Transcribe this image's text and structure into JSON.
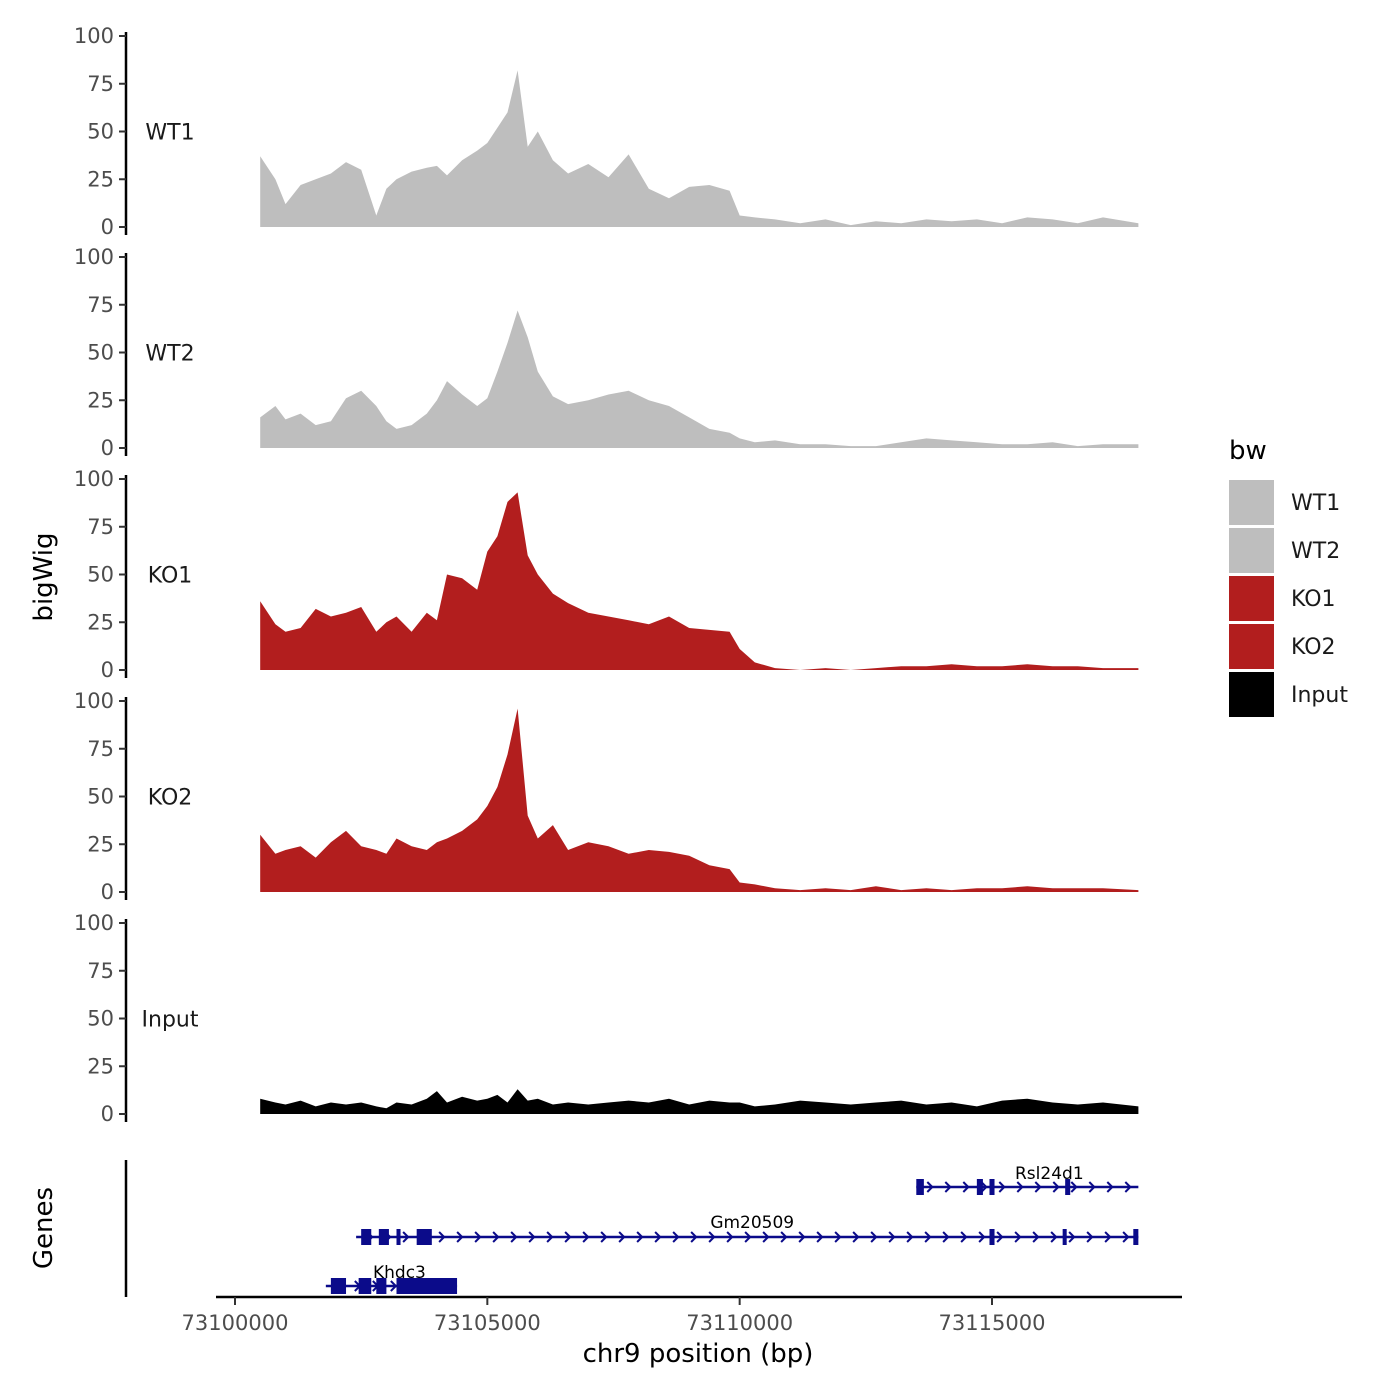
{
  "chart_data": {
    "type": "area",
    "y_axis_title": "bigWig",
    "x_axis_title": "chr9 position (bp)",
    "x_range": [
      73100000,
      73118000
    ],
    "x_ticks": [
      73100000,
      73105000,
      73110000,
      73115000
    ],
    "x_tick_labels": [
      "73100000",
      "73105000",
      "73110000",
      "73115000"
    ],
    "y_range": [
      0,
      100
    ],
    "y_ticks": [
      0,
      25,
      50,
      75,
      100
    ],
    "y_tick_labels": [
      "0",
      "25",
      "50",
      "75",
      "100"
    ],
    "legend": {
      "title": "bw",
      "position": "right",
      "items": [
        {
          "label": "WT1",
          "color": "#bebebe"
        },
        {
          "label": "WT2",
          "color": "#bebebe"
        },
        {
          "label": "KO1",
          "color": "#b21e1e"
        },
        {
          "label": "KO2",
          "color": "#b21e1e"
        },
        {
          "label": "Input",
          "color": "#000000"
        }
      ]
    },
    "series": [
      {
        "name": "WT1",
        "color": "#bebebe",
        "x": [
          73100500,
          73100800,
          73101000,
          73101300,
          73101600,
          73101900,
          73102200,
          73102500,
          73102800,
          73103000,
          73103200,
          73103500,
          73103800,
          73104000,
          73104200,
          73104500,
          73104800,
          73105000,
          73105200,
          73105400,
          73105600,
          73105800,
          73106000,
          73106300,
          73106600,
          73107000,
          73107400,
          73107800,
          73108200,
          73108600,
          73109000,
          73109400,
          73109800,
          73110000,
          73110300,
          73110700,
          73111200,
          73111700,
          73112200,
          73112700,
          73113200,
          73113700,
          73114200,
          73114700,
          73115200,
          73115700,
          73116200,
          73116700,
          73117200,
          73117900
        ],
        "values": [
          37,
          25,
          12,
          22,
          25,
          28,
          34,
          30,
          6,
          20,
          25,
          29,
          31,
          32,
          27,
          35,
          40,
          44,
          52,
          60,
          82,
          42,
          50,
          35,
          28,
          33,
          26,
          38,
          20,
          15,
          21,
          22,
          19,
          6,
          5,
          4,
          2,
          4,
          1,
          3,
          2,
          4,
          3,
          4,
          2,
          5,
          4,
          2,
          5,
          2
        ]
      },
      {
        "name": "WT2",
        "color": "#bebebe",
        "x": [
          73100500,
          73100800,
          73101000,
          73101300,
          73101600,
          73101900,
          73102200,
          73102500,
          73102800,
          73103000,
          73103200,
          73103500,
          73103800,
          73104000,
          73104200,
          73104500,
          73104800,
          73105000,
          73105200,
          73105400,
          73105600,
          73105800,
          73106000,
          73106300,
          73106600,
          73107000,
          73107400,
          73107800,
          73108200,
          73108600,
          73109000,
          73109400,
          73109800,
          73110000,
          73110300,
          73110700,
          73111200,
          73111700,
          73112200,
          73112700,
          73113200,
          73113700,
          73114200,
          73114700,
          73115200,
          73115700,
          73116200,
          73116700,
          73117200,
          73117900
        ],
        "values": [
          16,
          22,
          15,
          18,
          12,
          14,
          26,
          30,
          22,
          14,
          10,
          12,
          18,
          25,
          35,
          28,
          22,
          26,
          40,
          55,
          72,
          58,
          40,
          27,
          23,
          25,
          28,
          30,
          25,
          22,
          16,
          10,
          8,
          5,
          3,
          4,
          2,
          2,
          1,
          1,
          3,
          5,
          4,
          3,
          2,
          2,
          3,
          1,
          2,
          2
        ]
      },
      {
        "name": "KO1",
        "color": "#b21e1e",
        "x": [
          73100500,
          73100800,
          73101000,
          73101300,
          73101600,
          73101900,
          73102200,
          73102500,
          73102800,
          73103000,
          73103200,
          73103500,
          73103800,
          73104000,
          73104200,
          73104500,
          73104800,
          73105000,
          73105200,
          73105400,
          73105600,
          73105800,
          73106000,
          73106300,
          73106600,
          73107000,
          73107400,
          73107800,
          73108200,
          73108600,
          73109000,
          73109400,
          73109800,
          73110000,
          73110300,
          73110700,
          73111200,
          73111700,
          73112200,
          73112700,
          73113200,
          73113700,
          73114200,
          73114700,
          73115200,
          73115700,
          73116200,
          73116700,
          73117200,
          73117900
        ],
        "values": [
          36,
          24,
          20,
          22,
          32,
          28,
          30,
          33,
          20,
          25,
          28,
          20,
          30,
          26,
          50,
          48,
          42,
          62,
          70,
          88,
          93,
          60,
          50,
          40,
          35,
          30,
          28,
          26,
          24,
          28,
          22,
          21,
          20,
          11,
          4,
          1,
          0,
          1,
          0,
          1,
          2,
          2,
          3,
          2,
          2,
          3,
          2,
          2,
          1,
          1
        ]
      },
      {
        "name": "KO2",
        "color": "#b21e1e",
        "x": [
          73100500,
          73100800,
          73101000,
          73101300,
          73101600,
          73101900,
          73102200,
          73102500,
          73102800,
          73103000,
          73103200,
          73103500,
          73103800,
          73104000,
          73104200,
          73104500,
          73104800,
          73105000,
          73105200,
          73105400,
          73105600,
          73105800,
          73106000,
          73106300,
          73106600,
          73107000,
          73107400,
          73107800,
          73108200,
          73108600,
          73109000,
          73109400,
          73109800,
          73110000,
          73110300,
          73110700,
          73111200,
          73111700,
          73112200,
          73112700,
          73113200,
          73113700,
          73114200,
          73114700,
          73115200,
          73115700,
          73116200,
          73116700,
          73117200,
          73117900
        ],
        "values": [
          30,
          20,
          22,
          24,
          18,
          26,
          32,
          24,
          22,
          20,
          28,
          24,
          22,
          26,
          28,
          32,
          38,
          45,
          55,
          72,
          96,
          40,
          28,
          35,
          22,
          26,
          24,
          20,
          22,
          21,
          19,
          14,
          12,
          5,
          4,
          2,
          1,
          2,
          1,
          3,
          1,
          2,
          1,
          2,
          2,
          3,
          2,
          2,
          2,
          1
        ]
      },
      {
        "name": "Input",
        "color": "#000000",
        "x": [
          73100500,
          73100800,
          73101000,
          73101300,
          73101600,
          73101900,
          73102200,
          73102500,
          73102800,
          73103000,
          73103200,
          73103500,
          73103800,
          73104000,
          73104200,
          73104500,
          73104800,
          73105000,
          73105200,
          73105400,
          73105600,
          73105800,
          73106000,
          73106300,
          73106600,
          73107000,
          73107400,
          73107800,
          73108200,
          73108600,
          73109000,
          73109400,
          73109800,
          73110000,
          73110300,
          73110700,
          73111200,
          73111700,
          73112200,
          73112700,
          73113200,
          73113700,
          73114200,
          73114700,
          73115200,
          73115700,
          73116200,
          73116700,
          73117200,
          73117900
        ],
        "values": [
          8,
          6,
          5,
          7,
          4,
          6,
          5,
          6,
          4,
          3,
          6,
          5,
          8,
          12,
          6,
          9,
          7,
          8,
          10,
          6,
          13,
          7,
          8,
          5,
          6,
          5,
          6,
          7,
          6,
          8,
          5,
          7,
          6,
          6,
          4,
          5,
          7,
          6,
          5,
          6,
          7,
          5,
          6,
          4,
          7,
          8,
          6,
          5,
          6,
          4
        ]
      }
    ],
    "genes": [
      {
        "name": "Rsl24d1",
        "start": 73113500,
        "end": 73117900,
        "strand": "+",
        "exons": [
          [
            73113500,
            73113650
          ],
          [
            73114700,
            73114820
          ],
          [
            73114950,
            73115050
          ],
          [
            73116450,
            73116550
          ]
        ]
      },
      {
        "name": "Gm20509",
        "start": 73102400,
        "end": 73117900,
        "strand": "+",
        "exons": [
          [
            73102500,
            73102700
          ],
          [
            73102850,
            73103050
          ],
          [
            73103200,
            73103280
          ],
          [
            73103600,
            73103900
          ],
          [
            73114950,
            73115050
          ],
          [
            73116400,
            73116480
          ],
          [
            73117800,
            73117900
          ]
        ]
      },
      {
        "name": "Khdc3",
        "start": 73101800,
        "end": 73104400,
        "strand": "+",
        "exons": [
          [
            73101900,
            73102200
          ],
          [
            73102450,
            73102700
          ],
          [
            73102800,
            73103000
          ],
          [
            73103200,
            73104400
          ]
        ]
      }
    ],
    "genes_axis_title": "Genes"
  }
}
